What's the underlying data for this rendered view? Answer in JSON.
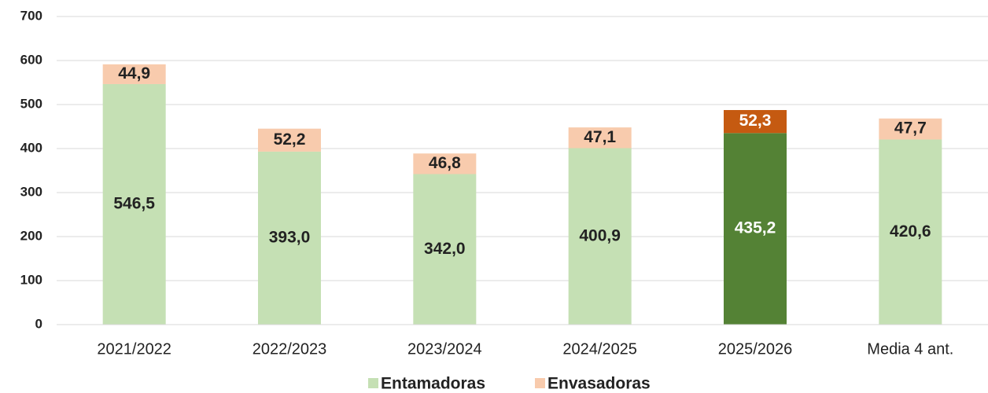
{
  "chart_data": {
    "type": "stacked_bar",
    "categories": [
      "2021/2022",
      "2022/2023",
      "2023/2024",
      "2024/2025",
      "2025/2026",
      "Media 4 ant."
    ],
    "series": [
      {
        "name": "Entamadoras",
        "color": "#c5e0b4",
        "colors": [
          "#c5e0b4",
          "#c5e0b4",
          "#c5e0b4",
          "#c5e0b4",
          "#548235",
          "#c5e0b4"
        ],
        "values": [
          546.5,
          393.0,
          342.0,
          400.9,
          435.2,
          420.6
        ],
        "value_labels": [
          "546,5",
          "393,0",
          "342,0",
          "400,9",
          "435,2",
          "420,6"
        ]
      },
      {
        "name": "Envasadoras",
        "color": "#f8cbad",
        "colors": [
          "#f8cbad",
          "#f8cbad",
          "#f8cbad",
          "#f8cbad",
          "#c55a11",
          "#f8cbad"
        ],
        "values": [
          44.9,
          52.2,
          46.8,
          47.1,
          52.3,
          47.7
        ],
        "value_labels": [
          "44,9",
          "52,2",
          "46,8",
          "47,1",
          "52,3",
          "47,7"
        ]
      }
    ],
    "ylim": [
      0,
      700
    ],
    "yticks": [
      0,
      100,
      200,
      300,
      400,
      500,
      600,
      700
    ],
    "grid": true,
    "legend": "bottom"
  }
}
